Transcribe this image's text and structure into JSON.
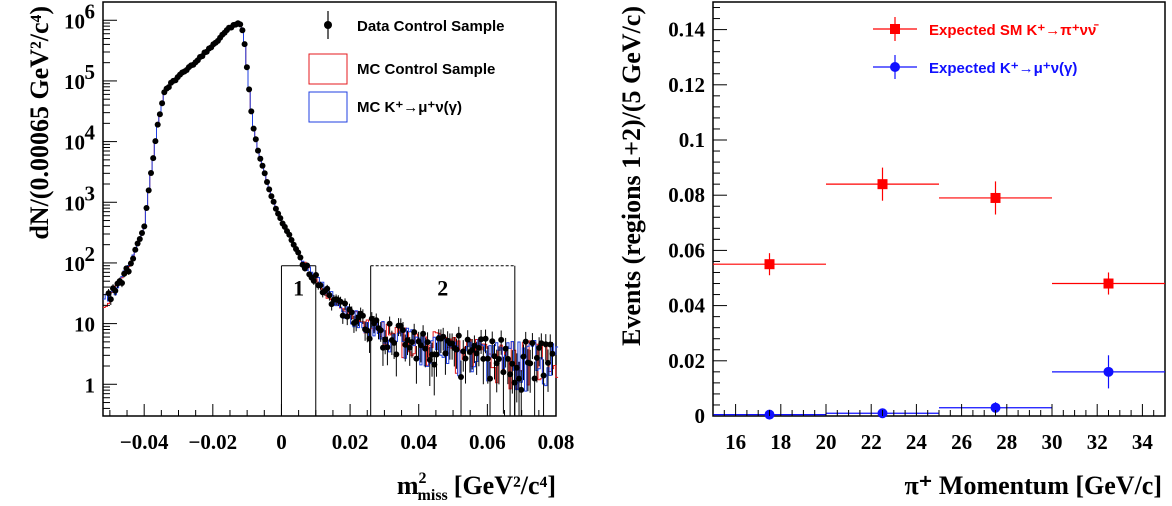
{
  "chart_data": [
    {
      "type": "scatter",
      "ylabel": "dN/(0.00065 GeV²/c⁴)",
      "xlabel_main": "m",
      "xlabel_sup": "2",
      "xlabel_sub": "miss",
      "xlabel_unit": "[GeV²/c⁴]",
      "xlim": [
        -0.052,
        0.08
      ],
      "ylim": [
        0.3,
        2000000
      ],
      "ylog": true,
      "x_ticks": [
        "−0.04",
        "−0.02",
        "0",
        "0.02",
        "0.04",
        "0.06",
        "0.08"
      ],
      "x_tick_values": [
        -0.04,
        -0.02,
        0,
        0.02,
        0.04,
        0.06,
        0.08
      ],
      "y_ticks": [
        {
          "base": "1",
          "exp": "",
          "value": 1
        },
        {
          "base": "10",
          "exp": "",
          "value": 10
        },
        {
          "base": "10",
          "exp": "2",
          "value": 100
        },
        {
          "base": "10",
          "exp": "3",
          "value": 1000
        },
        {
          "base": "10",
          "exp": "4",
          "value": 10000
        },
        {
          "base": "10",
          "exp": "5",
          "value": 100000
        },
        {
          "base": "10",
          "exp": "6",
          "value": 1000000
        }
      ],
      "legend": [
        {
          "label": "Data Control Sample",
          "style": "marker",
          "color": "#000000"
        },
        {
          "label": "MC Control Sample",
          "style": "box",
          "color": "#e41a1c"
        },
        {
          "label": "MC K⁺→μ⁺ν(γ)",
          "style": "box",
          "color": "#1f3fe0"
        }
      ],
      "regions": [
        {
          "label": "1",
          "x0": 0.0,
          "x1": 0.01,
          "ytop": 90
        },
        {
          "label": "2",
          "x0": 0.026,
          "x1": 0.068,
          "ytop": 90
        }
      ],
      "series_shape": {
        "name": "Data Control Sample",
        "x": [
          -0.052,
          -0.048,
          -0.044,
          -0.04,
          -0.038,
          -0.036,
          -0.034,
          -0.03,
          -0.026,
          -0.022,
          -0.018,
          -0.015,
          -0.013,
          -0.012,
          -0.011,
          -0.01,
          -0.009,
          -0.008,
          -0.007,
          -0.006,
          -0.004,
          -0.002,
          0.0,
          0.002,
          0.004,
          0.006,
          0.008,
          0.01,
          0.012,
          0.015,
          0.02,
          0.025,
          0.03,
          0.04,
          0.05,
          0.06,
          0.07,
          0.08
        ],
        "y": [
          20,
          40,
          90,
          400,
          3000,
          20000,
          70000,
          120000,
          180000,
          300000,
          500000,
          750000,
          900000,
          880000,
          600000,
          150000,
          40000,
          15000,
          8000,
          5000,
          2000,
          900,
          500,
          300,
          180,
          110,
          75,
          55,
          40,
          25,
          14,
          10,
          7,
          5,
          4,
          3.5,
          3,
          3
        ]
      }
    },
    {
      "type": "scatter",
      "ylabel": "Events (regions 1+2)/(5 GeV/c)",
      "xlabel": "π⁺ Momentum [GeV/c]",
      "xlim": [
        15,
        35
      ],
      "ylim": [
        0,
        0.15
      ],
      "x_ticks": [
        "16",
        "18",
        "20",
        "22",
        "24",
        "26",
        "28",
        "30",
        "32",
        "34"
      ],
      "x_tick_values": [
        16,
        18,
        20,
        22,
        24,
        26,
        28,
        30,
        32,
        34
      ],
      "y_ticks": [
        "0",
        "0.02",
        "0.04",
        "0.06",
        "0.08",
        "0.1",
        "0.12",
        "0.14"
      ],
      "y_tick_values": [
        0,
        0.02,
        0.04,
        0.06,
        0.08,
        0.1,
        0.12,
        0.14
      ],
      "legend": [
        {
          "label": "Expected SM K⁺→π⁺νν̄",
          "color": "#ff0000",
          "marker": "square"
        },
        {
          "label": "Expected K⁺→μ⁺ν(γ)",
          "color": "#1010ff",
          "marker": "circle"
        }
      ],
      "series": [
        {
          "name": "Expected SM K⁺→π⁺νν̄",
          "color": "#ff0000",
          "marker": "square",
          "x": [
            17.5,
            22.5,
            27.5,
            32.5
          ],
          "y": [
            0.055,
            0.084,
            0.079,
            0.048
          ],
          "xerr": [
            2.5,
            2.5,
            2.5,
            2.5
          ],
          "yerr": [
            0.004,
            0.006,
            0.006,
            0.004
          ]
        },
        {
          "name": "Expected K⁺→μ⁺ν(γ)",
          "color": "#1010ff",
          "marker": "circle",
          "x": [
            17.5,
            22.5,
            27.5,
            32.5
          ],
          "y": [
            0.0005,
            0.001,
            0.003,
            0.016
          ],
          "xerr": [
            2.5,
            2.5,
            2.5,
            2.5
          ],
          "yerr": [
            0.0005,
            0.001,
            0.002,
            0.006
          ]
        }
      ]
    }
  ]
}
